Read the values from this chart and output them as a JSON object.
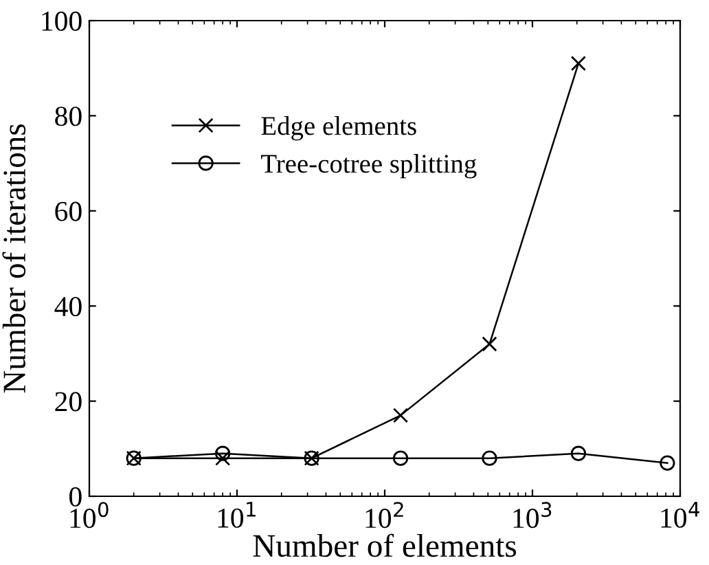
{
  "chart_data": {
    "type": "line",
    "xlabel": "Number of elements",
    "ylabel": "Number of iterations",
    "log": "x",
    "xlim": [
      1,
      10000
    ],
    "ylim": [
      0,
      100
    ],
    "xticks": [
      {
        "value": 1,
        "label": "10$^{0}$"
      },
      {
        "value": 10,
        "label": "10$^{1}$"
      },
      {
        "value": 100,
        "label": "10$^{2}$"
      },
      {
        "value": 1000,
        "label": "10$^{3}$"
      },
      {
        "value": 10000,
        "label": "10$^{4}$"
      }
    ],
    "yticks": [
      0,
      20,
      40,
      60,
      80,
      100
    ],
    "grid": false,
    "legend": "upper left",
    "series": [
      {
        "name": "Edge elements",
        "color": "#000000",
        "marker": "cross",
        "x": [
          2,
          8,
          32,
          128,
          512,
          2048
        ],
        "values": [
          8,
          8,
          8,
          17,
          32,
          91
        ]
      },
      {
        "name": "Tree-cotree splitting",
        "color": "#000000",
        "marker": "circle",
        "x": [
          2,
          8,
          32,
          128,
          512,
          2048,
          8192
        ],
        "values": [
          8,
          9,
          8,
          8,
          8,
          9,
          7
        ]
      }
    ]
  }
}
